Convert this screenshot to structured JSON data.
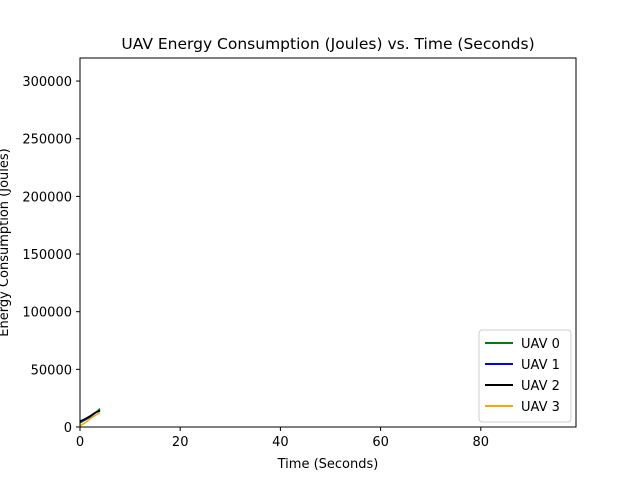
{
  "chart_data": {
    "type": "line",
    "title": "UAV Energy Consumption (Joules) vs. Time (Seconds)",
    "xlabel": "Time (Seconds)",
    "ylabel": "Energy Consumption (Joules)",
    "xlim": [
      0,
      99
    ],
    "ylim": [
      0,
      320000
    ],
    "xticks": [
      0,
      20,
      40,
      60,
      80
    ],
    "yticks": [
      0,
      50000,
      100000,
      150000,
      200000,
      250000,
      300000
    ],
    "grid": false,
    "legend_position": "lower-right",
    "series": [
      {
        "name": "UAV 0",
        "color": "#008000",
        "x": [
          0,
          1,
          2,
          3,
          4
        ],
        "y": [
          3500,
          6000,
          8500,
          12000,
          16000
        ]
      },
      {
        "name": "UAV 1",
        "color": "#0000ff",
        "x": [
          0,
          1,
          2,
          3,
          4
        ],
        "y": [
          4500,
          6500,
          9000,
          12000,
          14500
        ]
      },
      {
        "name": "UAV 2",
        "color": "#000000",
        "x": [
          0,
          1,
          2,
          3,
          4
        ],
        "y": [
          5000,
          7000,
          9500,
          12500,
          14000
        ]
      },
      {
        "name": "UAV 3",
        "color": "#ffa500",
        "x": [
          0,
          1,
          2,
          3,
          4
        ],
        "y": [
          1000,
          3500,
          7000,
          10000,
          12500
        ]
      }
    ]
  }
}
